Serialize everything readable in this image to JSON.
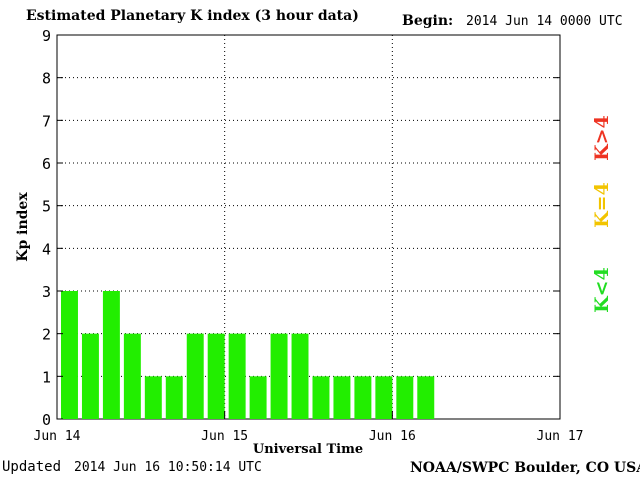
{
  "header": {
    "title": "Estimated Planetary K index (3 hour data)",
    "begin_label": "Begin:",
    "begin_value": "2014 Jun 14 0000 UTC"
  },
  "footer": {
    "updated_label": "Updated",
    "updated_value": "2014 Jun 16 10:50:14 UTC",
    "source": "NOAA/SWPC Boulder, CO USA"
  },
  "legend": [
    {
      "label": "K<4",
      "color": "#22dd22"
    },
    {
      "label": "K=4",
      "color": "#f2c400"
    },
    {
      "label": "K>4",
      "color": "#ee3322"
    }
  ],
  "chart_data": {
    "type": "bar",
    "title": "Estimated Planetary K index (3 hour data)",
    "xlabel": "Universal Time",
    "ylabel": "Kp index",
    "ylim": [
      0,
      9
    ],
    "yticks": [
      "0",
      "1",
      "2",
      "3",
      "4",
      "5",
      "6",
      "7",
      "8",
      "9"
    ],
    "xticks": [
      "Jun 14",
      "Jun 15",
      "Jun 16",
      "Jun 17"
    ],
    "bar_interval_hours": 3,
    "grid": true,
    "x_start": "2014 Jun 14 00:00 UTC",
    "values": [
      3,
      2,
      3,
      2,
      1,
      1,
      2,
      2,
      2,
      1,
      2,
      2,
      1,
      1,
      1,
      1,
      1,
      1
    ],
    "bar_color": "#22ee00"
  }
}
